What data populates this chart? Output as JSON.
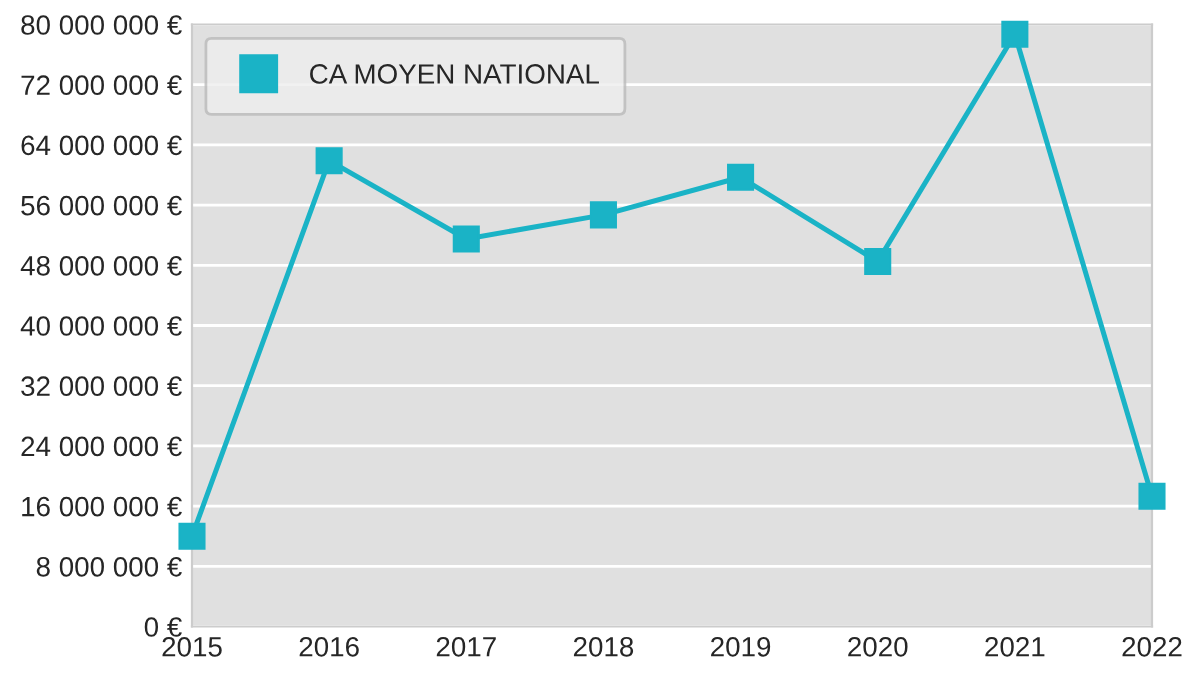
{
  "chart_data": {
    "type": "line",
    "x": [
      2015,
      2016,
      2017,
      2018,
      2019,
      2020,
      2021,
      2022
    ],
    "series": [
      {
        "name": "CA MOYEN NATIONAL",
        "color": "#1ab3c6",
        "values": [
          12000000,
          61900000,
          51500000,
          54700000,
          59700000,
          48500000,
          78700000,
          17300000
        ]
      }
    ],
    "xlim": [
      2015,
      2022
    ],
    "xticks": [
      2015,
      2016,
      2017,
      2018,
      2019,
      2020,
      2021,
      2022
    ],
    "ylim": [
      0,
      80000000
    ],
    "yticks": [
      {
        "value": 0,
        "label": "0 €"
      },
      {
        "value": 8000000,
        "label": "8 000 000 €"
      },
      {
        "value": 16000000,
        "label": "16 000 000 €"
      },
      {
        "value": 24000000,
        "label": "24 000 000 €"
      },
      {
        "value": 32000000,
        "label": "32 000 000 €"
      },
      {
        "value": 40000000,
        "label": "40 000 000 €"
      },
      {
        "value": 48000000,
        "label": "48 000 000 €"
      },
      {
        "value": 56000000,
        "label": "56 000 000 €"
      },
      {
        "value": 64000000,
        "label": "64 000 000 €"
      },
      {
        "value": 72000000,
        "label": "72 000 000 €"
      },
      {
        "value": 80000000,
        "label": "80 000 000 €"
      }
    ],
    "grid": "y",
    "legend": "top left",
    "marker": "square",
    "line_style": "solid"
  }
}
